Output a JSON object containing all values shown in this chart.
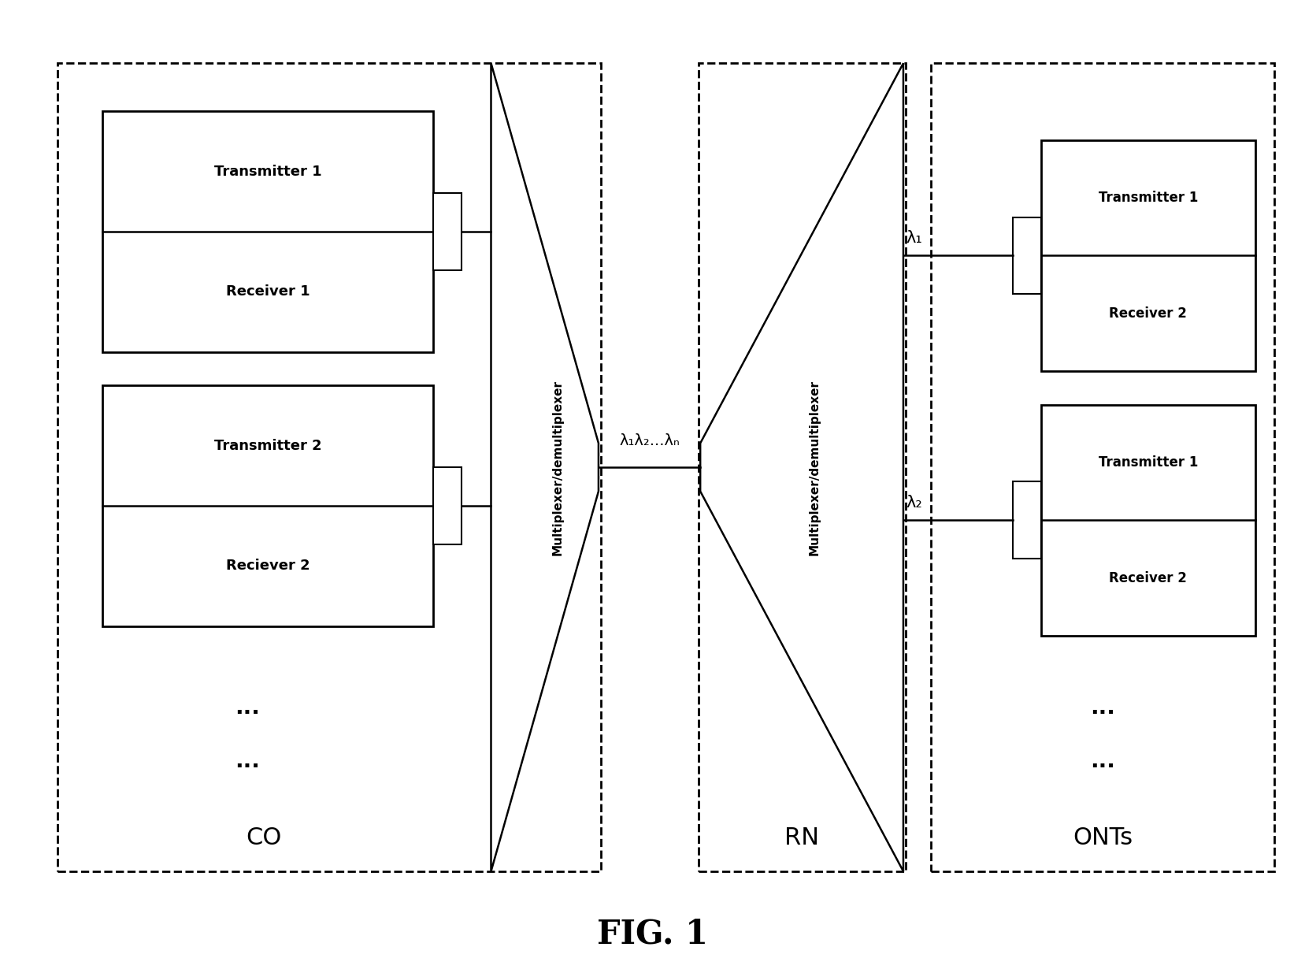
{
  "fig_width": 16.58,
  "fig_height": 12.35,
  "bg_color": "#ffffff",
  "line_color": "#000000",
  "co_label": "CO",
  "rn_label": "RN",
  "onts_label": "ONTs",
  "fig_label": "FIG. 1",
  "mux1_label": "Multiplexer/demultiplexer",
  "mux2_label": "Multiplexer/demultiplexer",
  "transmitter1_top": "Transmitter 1",
  "receiver1_top": "Receiver 1",
  "transmitter2_top": "Transmitter 2",
  "receiver2_top": "Reciever 2",
  "transmitter1_ont1": "Transmitter 1",
  "receiver2_ont1": "Receiver 2",
  "transmitter1_ont2": "Transmitter 1",
  "receiver2_ont2": "Receiver 2",
  "lambda_line": "λ₁λ₂...λₙ",
  "lambda1": "λ₁",
  "lambda2": "λ₂"
}
